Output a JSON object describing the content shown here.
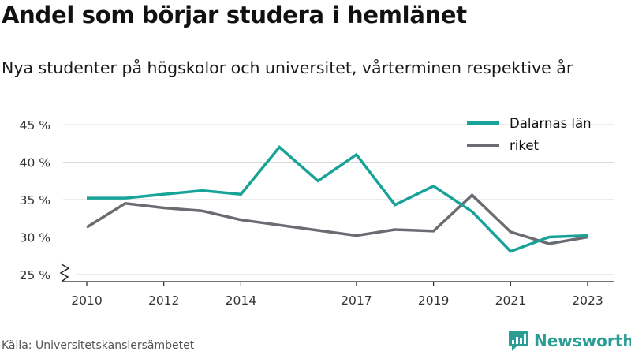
{
  "title": "Andel som börjar studera i hemlänet",
  "subtitle": "Nya studenter på högskolor och universitet, vårterminen respektive år",
  "source": "Källa: Universitetskanslersämbetet",
  "brand": "Newsworthy",
  "colors": {
    "dalarna": "#17a398",
    "riket": "#6b6b72",
    "grid": "#d9d9d9",
    "brand": "#2a9d95"
  },
  "chart_data": {
    "type": "line",
    "x": [
      2010,
      2011,
      2012,
      2013,
      2014,
      2015,
      2016,
      2017,
      2018,
      2019,
      2020,
      2021,
      2022,
      2023
    ],
    "xticks": [
      2010,
      2012,
      2014,
      2017,
      2019,
      2021,
      2023
    ],
    "xlim": [
      2009.7,
      2023.3
    ],
    "yticks": [
      {
        "value": 25,
        "label": "25 %"
      },
      {
        "value": 30,
        "label": "30 %"
      },
      {
        "value": 35,
        "label": "35 %"
      },
      {
        "value": 40,
        "label": "40 %"
      },
      {
        "value": 45,
        "label": "45 %"
      }
    ],
    "ylim": [
      24.5,
      45.5
    ],
    "axis_break": true,
    "grid": true,
    "legend_position": "top-right",
    "series": [
      {
        "name": "Dalarnas län",
        "color_key": "dalarna",
        "values": [
          35.2,
          35.2,
          35.7,
          36.2,
          35.7,
          42.0,
          37.5,
          41.0,
          34.3,
          36.8,
          33.4,
          28.1,
          30.0,
          30.2
        ]
      },
      {
        "name": "riket",
        "color_key": "riket",
        "values": [
          31.3,
          34.5,
          33.9,
          33.5,
          32.3,
          31.6,
          30.9,
          30.2,
          31.0,
          30.8,
          35.6,
          30.7,
          29.1,
          30.0
        ]
      }
    ]
  }
}
